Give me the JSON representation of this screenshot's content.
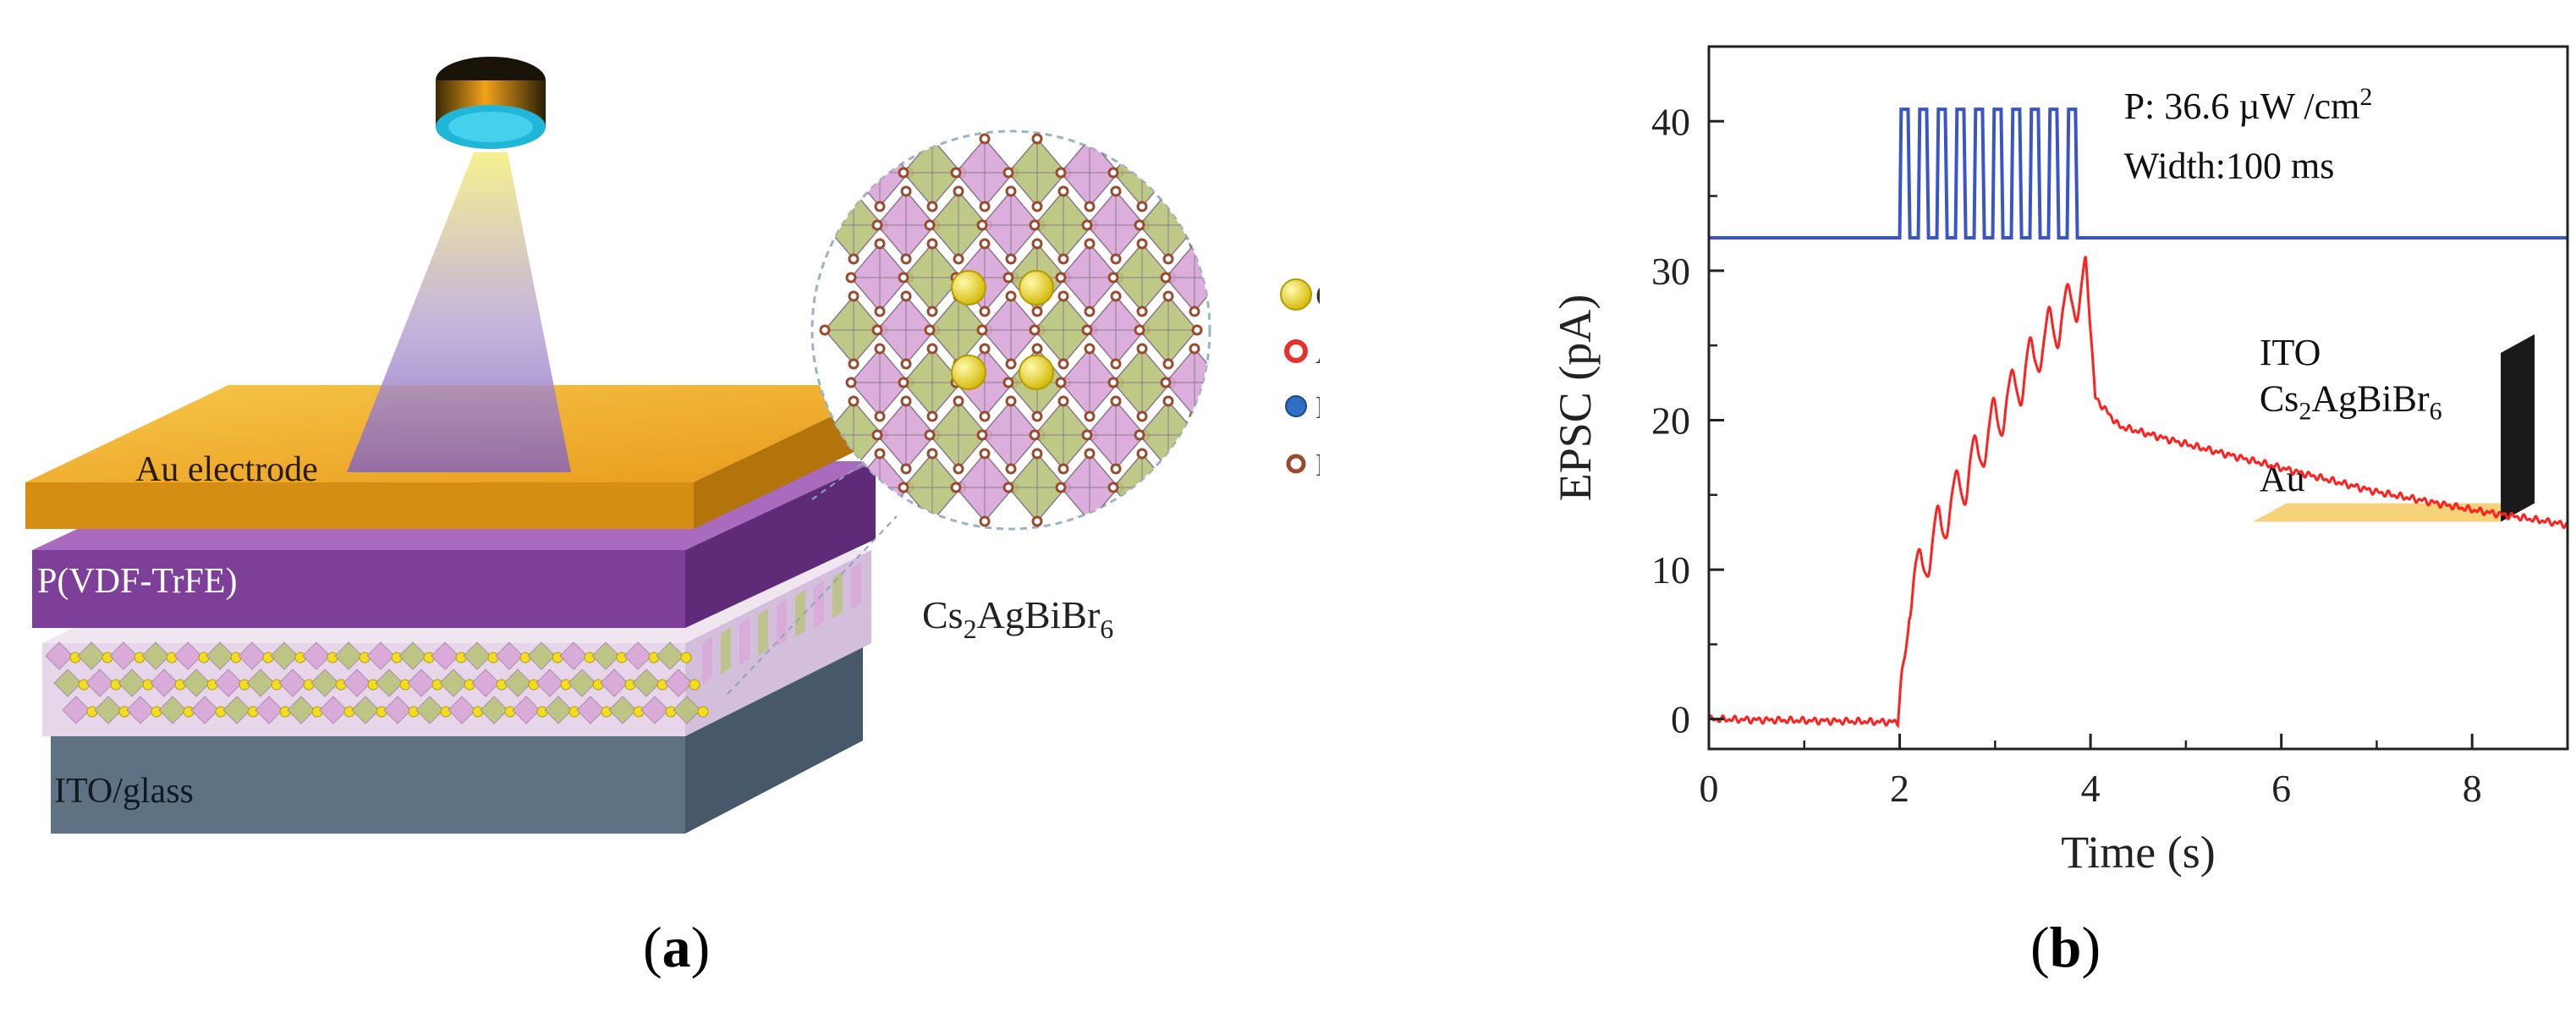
{
  "panel_a": {
    "caption_open": "(",
    "caption_letter": "a",
    "caption_close": ")",
    "layers": {
      "au": "Au electrode",
      "pvdf": "P(VDF-TrFE)",
      "ito": "ITO/glass"
    },
    "crystal_formula": {
      "base": "Cs",
      "sub1": "2",
      "mid": "AgBiBr",
      "sub2": "6"
    },
    "legend": [
      {
        "label": "Cs",
        "color": "#e8d21a"
      },
      {
        "label": "Ag",
        "color": "#e8312a"
      },
      {
        "label": "Bi",
        "color": "#2f6fc4"
      },
      {
        "label": "Br",
        "color": "#9a4a2e"
      }
    ],
    "colors": {
      "au_top": "#f3b12b",
      "au_side": "#d98e12",
      "pvdf_top": "#9b5bb0",
      "pvdf_side": "#7c3c96",
      "ito_top": "#c9d6e0",
      "ito_side": "#7f8f9e",
      "octa_green": "#b9c47a",
      "octa_pink": "#d9a6d8"
    }
  },
  "panel_b": {
    "caption_open": "(",
    "caption_letter": "b",
    "caption_close": ")",
    "chart_data": {
      "type": "line",
      "xlabel": "Time (s)",
      "ylabel": "EPSC (pA)",
      "xlim": [
        0,
        9
      ],
      "ylim": [
        -2,
        45
      ],
      "x_ticks": [
        0,
        2,
        4,
        6,
        8
      ],
      "y_ticks": [
        0,
        10,
        20,
        30,
        40
      ],
      "annotation_power_prefix": "P: 36.6 µW /cm",
      "annotation_power_sup": "2",
      "annotation_width": "Width:100 ms",
      "pulse_series": {
        "color": "#3a55c8",
        "baseline": 32.2,
        "high": 40.8,
        "start": 2.0,
        "end": 3.95,
        "count": 10
      },
      "epsc_series": {
        "color": "#ff2020",
        "envelope": [
          [
            0,
            0
          ],
          [
            1.98,
            -0.2
          ],
          [
            2.1,
            10
          ],
          [
            2.5,
            15.5
          ],
          [
            3.0,
            21.5
          ],
          [
            3.5,
            26.8
          ],
          [
            3.95,
            30.8
          ],
          [
            4.05,
            21.5
          ],
          [
            4.3,
            19.6
          ],
          [
            5,
            18.4
          ],
          [
            6,
            16.8
          ],
          [
            7,
            15.2
          ],
          [
            8,
            14.0
          ],
          [
            9,
            13.0
          ]
        ]
      },
      "inset": {
        "layers": [
          {
            "label": "Au",
            "color": "#f2bb2a"
          },
          {
            "label": "P(VDF-TrFE)",
            "color": "#a15db5"
          },
          {
            "label_base": "Cs",
            "label_sub1": "2",
            "label_mid": "AgBiBr",
            "label_sub2": "6",
            "color": "#e8782a"
          },
          {
            "label": "ITO",
            "color": "#d9d9d9"
          }
        ]
      }
    }
  }
}
